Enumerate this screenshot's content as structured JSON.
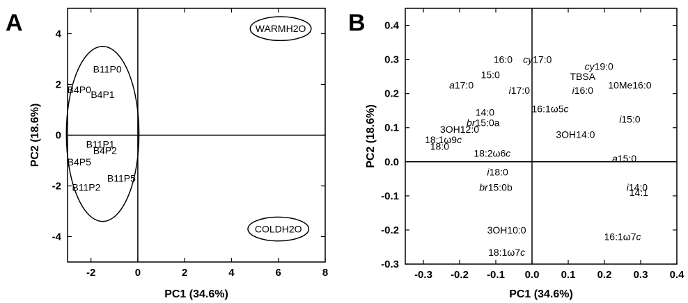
{
  "chart_data": [
    {
      "panel": "A",
      "type": "scatter",
      "xlabel": "PC1 (34.6%)",
      "ylabel": "PC2 (18.6%)",
      "xlim": [
        -3,
        8
      ],
      "ylim": [
        -5,
        5
      ],
      "xticks": [
        "-2",
        "0",
        "2",
        "4",
        "6",
        "8"
      ],
      "xtick_values": [
        -2,
        0,
        2,
        4,
        6,
        8
      ],
      "yticks": [
        "4",
        "2",
        "0",
        "-2",
        "-4"
      ],
      "ytick_values": [
        4,
        2,
        0,
        -2,
        -4
      ],
      "reference_lines": {
        "x": 0,
        "y": 0
      },
      "grid": false,
      "points": [
        {
          "label": "B11P0",
          "x": -1.3,
          "y": 2.6
        },
        {
          "label": "B4P0",
          "x": -2.5,
          "y": 1.8
        },
        {
          "label": "B4P1",
          "x": -1.5,
          "y": 1.6
        },
        {
          "label": "B11P1",
          "x": -1.6,
          "y": -0.35
        },
        {
          "label": "B4P2",
          "x": -1.4,
          "y": -0.6
        },
        {
          "label": "B4P5",
          "x": -2.5,
          "y": -1.05
        },
        {
          "label": "B11P5",
          "x": -0.7,
          "y": -1.7
        },
        {
          "label": "B11P2",
          "x": -2.2,
          "y": -2.05
        },
        {
          "label": "WARMH2O",
          "x": 6.1,
          "y": 4.2
        },
        {
          "label": "COLDH2O",
          "x": 6.0,
          "y": -3.7
        }
      ],
      "ellipses": [
        {
          "label": "group",
          "cx": -1.5,
          "cy": 0.05,
          "rx": 1.55,
          "ry": 3.45
        },
        {
          "label": "WARMH2O",
          "cx": 6.1,
          "cy": 4.2,
          "rx": 1.3,
          "ry": 0.47
        },
        {
          "label": "COLDH2O",
          "cx": 6.0,
          "cy": -3.7,
          "rx": 1.3,
          "ry": 0.47
        }
      ]
    },
    {
      "panel": "B",
      "type": "scatter",
      "xlabel": "PC1 (34.6%)",
      "ylabel": "PC2 (18.6%)",
      "xlim": [
        -0.35,
        0.4
      ],
      "ylim": [
        -0.3,
        0.45
      ],
      "xticks": [
        "-0.3",
        "-0.2",
        "-0.1",
        "0.0",
        "0.1",
        "0.2",
        "0.3",
        "0.4"
      ],
      "xtick_values": [
        -0.3,
        -0.2,
        -0.1,
        0.0,
        0.1,
        0.2,
        0.3,
        0.4
      ],
      "yticks": [
        "0.4",
        "0.3",
        "0.2",
        "0.1",
        "0.0",
        "-0.1",
        "-0.2",
        "-0.3"
      ],
      "ytick_values": [
        0.4,
        0.3,
        0.2,
        0.1,
        0.0,
        -0.1,
        -0.2,
        -0.3
      ],
      "reference_lines": {
        "x": 0,
        "y": 0
      },
      "grid": false,
      "points": [
        {
          "label": "16:0",
          "parts": [
            {
              "t": "16:0",
              "i": false
            }
          ],
          "x": -0.08,
          "y": 0.3
        },
        {
          "label": "cy17:0",
          "parts": [
            {
              "t": "cy",
              "i": true
            },
            {
              "t": "17:0",
              "i": false
            }
          ],
          "x": 0.015,
          "y": 0.3
        },
        {
          "label": "cy19:0",
          "parts": [
            {
              "t": "cy",
              "i": true
            },
            {
              "t": "19:0",
              "i": false
            }
          ],
          "x": 0.185,
          "y": 0.28
        },
        {
          "label": "15:0",
          "parts": [
            {
              "t": "15:0",
              "i": false
            }
          ],
          "x": -0.115,
          "y": 0.255
        },
        {
          "label": "TBSA",
          "parts": [
            {
              "t": "TBSA",
              "i": false
            }
          ],
          "x": 0.14,
          "y": 0.25
        },
        {
          "label": "a17:0",
          "parts": [
            {
              "t": "a",
              "i": true
            },
            {
              "t": "17:0",
              "i": false
            }
          ],
          "x": -0.195,
          "y": 0.225
        },
        {
          "label": "i17:0",
          "parts": [
            {
              "t": "i",
              "i": true
            },
            {
              "t": "17:0",
              "i": false
            }
          ],
          "x": -0.035,
          "y": 0.21
        },
        {
          "label": "i16:0",
          "parts": [
            {
              "t": "i",
              "i": true
            },
            {
              "t": "16:0",
              "i": false
            }
          ],
          "x": 0.14,
          "y": 0.21
        },
        {
          "label": "10Me16:0",
          "parts": [
            {
              "t": "10Me16:0",
              "i": false
            }
          ],
          "x": 0.27,
          "y": 0.225
        },
        {
          "label": "16:1ω5c",
          "parts": [
            {
              "t": "16:1ω5",
              "i": false
            },
            {
              "t": "c",
              "i": true
            }
          ],
          "x": 0.05,
          "y": 0.155
        },
        {
          "label": "14:0",
          "parts": [
            {
              "t": "14:0",
              "i": false
            }
          ],
          "x": -0.13,
          "y": 0.145
        },
        {
          "label": "i15:0",
          "parts": [
            {
              "t": "i",
              "i": true
            },
            {
              "t": "15:0",
              "i": false
            }
          ],
          "x": 0.27,
          "y": 0.125
        },
        {
          "label": "br15:0a",
          "parts": [
            {
              "t": "br",
              "i": true
            },
            {
              "t": "15:0a",
              "i": false
            }
          ],
          "x": -0.135,
          "y": 0.115
        },
        {
          "label": "3OH12:0",
          "parts": [
            {
              "t": "3OH12:0",
              "i": false
            }
          ],
          "x": -0.2,
          "y": 0.095
        },
        {
          "label": "3OH14:0",
          "parts": [
            {
              "t": "3OH14:0",
              "i": false
            }
          ],
          "x": 0.12,
          "y": 0.08
        },
        {
          "label": "18:1ω9c",
          "parts": [
            {
              "t": "18:1ω9",
              "i": false
            },
            {
              "t": "c",
              "i": true
            }
          ],
          "x": -0.245,
          "y": 0.065
        },
        {
          "label": "18:0",
          "parts": [
            {
              "t": "18:0",
              "i": false
            }
          ],
          "x": -0.255,
          "y": 0.045
        },
        {
          "label": "18:2ω6c",
          "parts": [
            {
              "t": "18:2ω6",
              "i": false
            },
            {
              "t": "c",
              "i": true
            }
          ],
          "x": -0.11,
          "y": 0.025
        },
        {
          "label": "a15:0",
          "parts": [
            {
              "t": "a",
              "i": true
            },
            {
              "t": "15:0",
              "i": false
            }
          ],
          "x": 0.255,
          "y": 0.01
        },
        {
          "label": "i18:0",
          "parts": [
            {
              "t": "i",
              "i": true
            },
            {
              "t": "18:0",
              "i": false
            }
          ],
          "x": -0.095,
          "y": -0.03
        },
        {
          "label": "br15:0b",
          "parts": [
            {
              "t": "br",
              "i": true
            },
            {
              "t": "15:0b",
              "i": false
            }
          ],
          "x": -0.1,
          "y": -0.075
        },
        {
          "label": "i14:0",
          "parts": [
            {
              "t": "i",
              "i": true
            },
            {
              "t": "14:0",
              "i": false
            }
          ],
          "x": 0.29,
          "y": -0.075
        },
        {
          "label": "14:1",
          "parts": [
            {
              "t": "14:1",
              "i": false
            }
          ],
          "x": 0.295,
          "y": -0.09
        },
        {
          "label": "3OH10:0",
          "parts": [
            {
              "t": "3OH10:0",
              "i": false
            }
          ],
          "x": -0.07,
          "y": -0.2
        },
        {
          "label": "16:1ω7c",
          "parts": [
            {
              "t": "16:1ω7",
              "i": false
            },
            {
              "t": "c",
              "i": true
            }
          ],
          "x": 0.25,
          "y": -0.22
        },
        {
          "label": "18:1ω7c",
          "parts": [
            {
              "t": "18:1ω7",
              "i": false
            },
            {
              "t": "c",
              "i": true
            }
          ],
          "x": -0.07,
          "y": -0.265
        }
      ]
    }
  ]
}
